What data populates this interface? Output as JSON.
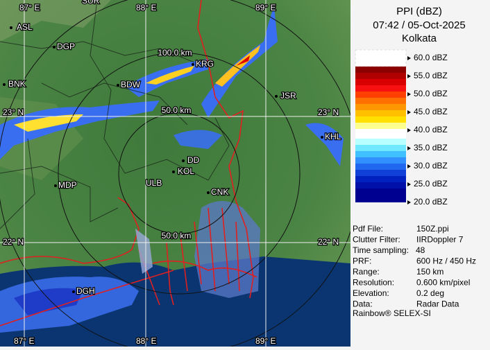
{
  "header": {
    "product": "PPI (dBZ)",
    "time": "07:42 / 05-Oct-2025",
    "station": "Kolkata"
  },
  "legend": [
    "60.0 dBZ",
    "55.0 dBZ",
    "50.0 dBZ",
    "45.0 dBZ",
    "40.0 dBZ",
    "35.0 dBZ",
    "30.0 dBZ",
    "25.0 dBZ",
    "20.0 dBZ"
  ],
  "info": [
    {
      "label": "Pdf File:",
      "value": "150Z.ppi"
    },
    {
      "label": "Clutter Filter:",
      "value": "IIRDoppler 7"
    },
    {
      "label": "Time sampling:",
      "value": "48"
    },
    {
      "label": "PRF:",
      "value": "600 Hz / 450 Hz"
    },
    {
      "label": "Range:",
      "value": "150 km"
    },
    {
      "label": "Resolution:",
      "value": "0.600 km/pixel"
    },
    {
      "label": "Elevation:",
      "value": "0.2 deg"
    },
    {
      "label": "Data:",
      "value": "Radar Data"
    }
  ],
  "footer": "Rainbow® SELEX-SI",
  "map": {
    "grid_labels": [
      "87° E",
      "88° E",
      "89° E",
      "23° N",
      "23° N",
      "22° N",
      "22° N",
      "87° E",
      "88° E",
      "89° E"
    ],
    "range_labels": [
      "100.0 km",
      "50.0 km",
      "50.0 km"
    ],
    "places": [
      "SUR",
      "ASL",
      "DGP",
      "BNK",
      "BDW",
      "KRG",
      "JSR",
      "KHL",
      "DD",
      "KOL",
      "ULB",
      "MDP",
      "CNK",
      "DGH"
    ]
  }
}
